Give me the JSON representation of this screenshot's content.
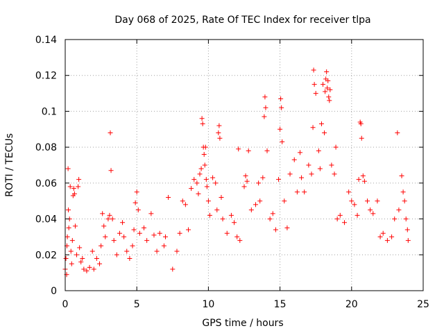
{
  "chart_data": {
    "type": "scatter",
    "title": "Day 068 of 2025, Rate Of TEC Index for receiver tlpa",
    "xlabel": "GPS time / hours",
    "ylabel": "ROTI / TECUs",
    "xlim": [
      0,
      25
    ],
    "ylim": [
      0,
      0.14
    ],
    "xticks": [
      "0",
      "5",
      "10",
      "15",
      "20",
      "25"
    ],
    "yticks": [
      "0",
      "0.02",
      "0.04",
      "0.06",
      "0.08",
      "0.1",
      "0.12",
      "0.14"
    ],
    "grid": true,
    "marker": "plus",
    "color": "#ff0000",
    "series": [
      {
        "points": [
          [
            0.0,
            0.012
          ],
          [
            0.05,
            0.018
          ],
          [
            0.1,
            0.009
          ],
          [
            0.12,
            0.025
          ],
          [
            0.15,
            0.03
          ],
          [
            0.2,
            0.068
          ],
          [
            0.22,
            0.045
          ],
          [
            0.25,
            0.035
          ],
          [
            0.3,
            0.04
          ],
          [
            0.35,
            0.058
          ],
          [
            0.4,
            0.022
          ],
          [
            0.45,
            0.015
          ],
          [
            0.5,
            0.028
          ],
          [
            0.55,
            0.053
          ],
          [
            0.6,
            0.057
          ],
          [
            0.65,
            0.054
          ],
          [
            0.7,
            0.036
          ],
          [
            0.8,
            0.02
          ],
          [
            0.9,
            0.058
          ],
          [
            0.95,
            0.062
          ],
          [
            1.0,
            0.024
          ],
          [
            1.1,
            0.016
          ],
          [
            1.2,
            0.018
          ],
          [
            1.3,
            0.012
          ],
          [
            1.5,
            0.011
          ],
          [
            1.7,
            0.013
          ],
          [
            1.9,
            0.022
          ],
          [
            2.0,
            0.012
          ],
          [
            2.2,
            0.018
          ],
          [
            2.4,
            0.015
          ],
          [
            2.5,
            0.025
          ],
          [
            2.6,
            0.043
          ],
          [
            2.7,
            0.036
          ],
          [
            2.8,
            0.03
          ],
          [
            3.0,
            0.04
          ],
          [
            3.1,
            0.042
          ],
          [
            3.15,
            0.088
          ],
          [
            3.2,
            0.067
          ],
          [
            3.3,
            0.04
          ],
          [
            3.4,
            0.028
          ],
          [
            3.6,
            0.02
          ],
          [
            3.8,
            0.032
          ],
          [
            4.0,
            0.038
          ],
          [
            4.1,
            0.03
          ],
          [
            4.3,
            0.022
          ],
          [
            4.5,
            0.018
          ],
          [
            4.7,
            0.025
          ],
          [
            4.8,
            0.034
          ],
          [
            4.9,
            0.049
          ],
          [
            5.0,
            0.055
          ],
          [
            5.1,
            0.045
          ],
          [
            5.2,
            0.032
          ],
          [
            5.5,
            0.035
          ],
          [
            5.7,
            0.028
          ],
          [
            6.0,
            0.043
          ],
          [
            6.2,
            0.031
          ],
          [
            6.4,
            0.022
          ],
          [
            6.6,
            0.032
          ],
          [
            6.9,
            0.025
          ],
          [
            7.0,
            0.03
          ],
          [
            7.2,
            0.052
          ],
          [
            7.5,
            0.012
          ],
          [
            7.8,
            0.022
          ],
          [
            8.0,
            0.032
          ],
          [
            8.2,
            0.05
          ],
          [
            8.4,
            0.048
          ],
          [
            8.6,
            0.034
          ],
          [
            8.8,
            0.057
          ],
          [
            9.0,
            0.062
          ],
          [
            9.2,
            0.06
          ],
          [
            9.3,
            0.054
          ],
          [
            9.4,
            0.065
          ],
          [
            9.5,
            0.068
          ],
          [
            9.55,
            0.096
          ],
          [
            9.6,
            0.093
          ],
          [
            9.65,
            0.08
          ],
          [
            9.7,
            0.076
          ],
          [
            9.75,
            0.07
          ],
          [
            9.8,
            0.08
          ],
          [
            9.85,
            0.062
          ],
          [
            9.9,
            0.058
          ],
          [
            10.0,
            0.05
          ],
          [
            10.1,
            0.042
          ],
          [
            10.3,
            0.063
          ],
          [
            10.5,
            0.06
          ],
          [
            10.6,
            0.045
          ],
          [
            10.7,
            0.088
          ],
          [
            10.75,
            0.092
          ],
          [
            10.8,
            0.085
          ],
          [
            10.9,
            0.052
          ],
          [
            11.0,
            0.04
          ],
          [
            11.3,
            0.032
          ],
          [
            11.6,
            0.042
          ],
          [
            11.8,
            0.038
          ],
          [
            12.0,
            0.03
          ],
          [
            12.1,
            0.079
          ],
          [
            12.2,
            0.028
          ],
          [
            12.5,
            0.058
          ],
          [
            12.6,
            0.064
          ],
          [
            12.7,
            0.061
          ],
          [
            12.8,
            0.078
          ],
          [
            13.0,
            0.045
          ],
          [
            13.3,
            0.048
          ],
          [
            13.5,
            0.06
          ],
          [
            13.6,
            0.05
          ],
          [
            13.8,
            0.063
          ],
          [
            13.9,
            0.097
          ],
          [
            13.95,
            0.108
          ],
          [
            14.0,
            0.102
          ],
          [
            14.1,
            0.078
          ],
          [
            14.3,
            0.04
          ],
          [
            14.5,
            0.043
          ],
          [
            14.7,
            0.034
          ],
          [
            14.9,
            0.062
          ],
          [
            15.0,
            0.09
          ],
          [
            15.05,
            0.107
          ],
          [
            15.1,
            0.102
          ],
          [
            15.15,
            0.083
          ],
          [
            15.3,
            0.05
          ],
          [
            15.5,
            0.035
          ],
          [
            15.7,
            0.065
          ],
          [
            16.0,
            0.073
          ],
          [
            16.2,
            0.055
          ],
          [
            16.4,
            0.077
          ],
          [
            16.5,
            0.063
          ],
          [
            16.7,
            0.055
          ],
          [
            17.0,
            0.07
          ],
          [
            17.2,
            0.065
          ],
          [
            17.3,
            0.091
          ],
          [
            17.35,
            0.123
          ],
          [
            17.4,
            0.115
          ],
          [
            17.5,
            0.11
          ],
          [
            17.7,
            0.078
          ],
          [
            17.8,
            0.068
          ],
          [
            17.9,
            0.093
          ],
          [
            18.0,
            0.115
          ],
          [
            18.1,
            0.088
          ],
          [
            18.15,
            0.111
          ],
          [
            18.2,
            0.118
          ],
          [
            18.25,
            0.122
          ],
          [
            18.3,
            0.113
          ],
          [
            18.35,
            0.117
          ],
          [
            18.4,
            0.108
          ],
          [
            18.45,
            0.106
          ],
          [
            18.5,
            0.112
          ],
          [
            18.6,
            0.07
          ],
          [
            18.8,
            0.065
          ],
          [
            18.9,
            0.08
          ],
          [
            19.0,
            0.04
          ],
          [
            19.2,
            0.042
          ],
          [
            19.5,
            0.038
          ],
          [
            19.8,
            0.055
          ],
          [
            20.0,
            0.05
          ],
          [
            20.2,
            0.048
          ],
          [
            20.4,
            0.042
          ],
          [
            20.5,
            0.062
          ],
          [
            20.6,
            0.094
          ],
          [
            20.65,
            0.093
          ],
          [
            20.7,
            0.085
          ],
          [
            20.8,
            0.064
          ],
          [
            20.9,
            0.061
          ],
          [
            21.1,
            0.05
          ],
          [
            21.3,
            0.045
          ],
          [
            21.5,
            0.043
          ],
          [
            21.8,
            0.05
          ],
          [
            22.0,
            0.03
          ],
          [
            22.2,
            0.032
          ],
          [
            22.5,
            0.028
          ],
          [
            22.8,
            0.03
          ],
          [
            23.0,
            0.04
          ],
          [
            23.2,
            0.088
          ],
          [
            23.3,
            0.045
          ],
          [
            23.5,
            0.064
          ],
          [
            23.6,
            0.055
          ],
          [
            23.7,
            0.05
          ],
          [
            23.8,
            0.04
          ],
          [
            23.9,
            0.034
          ],
          [
            23.95,
            0.028
          ]
        ]
      }
    ]
  }
}
